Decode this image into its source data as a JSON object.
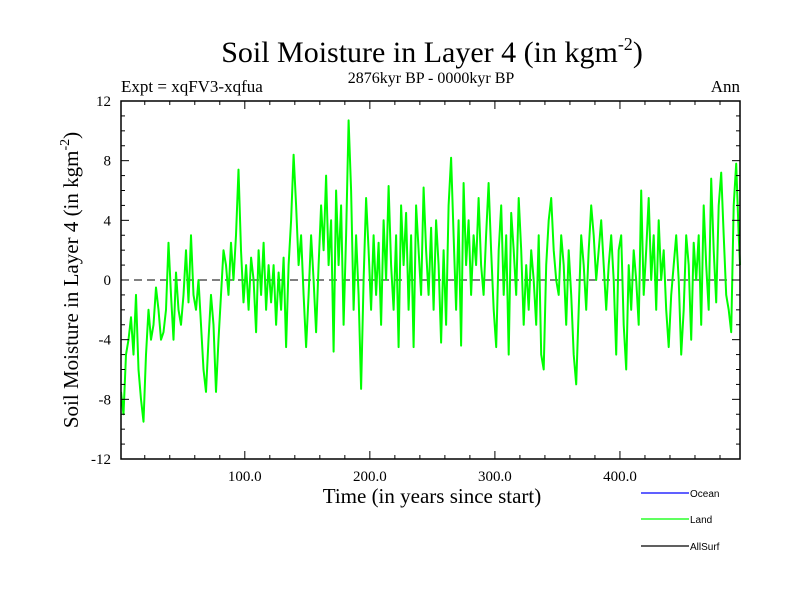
{
  "chart_data": {
    "type": "line",
    "title": "Soil Moisture in Layer 4 (in kgm",
    "title_sup": "-2",
    "title_close": ")",
    "subtitle": "2876kyr BP - 0000kyr BP",
    "left_label": "Expt = xqFV3-xqfua",
    "right_label": "Ann",
    "xlabel": "Time (in years since start)",
    "ylabel": "Soil Moisture in Layer 4 (in kgm",
    "ylabel_sup": "-2",
    "ylabel_close": ")",
    "xlim": [
      1,
      496
    ],
    "ylim": [
      -12,
      12
    ],
    "x_ticks": [
      100,
      200,
      300,
      400
    ],
    "x_tick_labels": [
      "100.0",
      "200.0",
      "300.0",
      "400.0"
    ],
    "y_ticks": [
      -12,
      -8,
      -4,
      0,
      4,
      8,
      12
    ],
    "y_tick_labels": [
      "-12",
      "-8",
      "-4",
      "0",
      "4",
      "8",
      "12"
    ],
    "zero_line": "dashed",
    "legend_position": "bottom-right",
    "series": [
      {
        "name": "Ocean",
        "color": "#0000ff",
        "visible_in_plot": false,
        "values": []
      },
      {
        "name": "Land",
        "color": "#00ff00",
        "visible_in_plot": true,
        "points": [
          [
            1,
            -7.5
          ],
          [
            3,
            -9
          ],
          [
            5,
            -5
          ],
          [
            7,
            -4
          ],
          [
            9,
            -2.5
          ],
          [
            11,
            -5
          ],
          [
            13,
            -1
          ],
          [
            15,
            -6
          ],
          [
            17,
            -8
          ],
          [
            19,
            -9.5
          ],
          [
            21,
            -5
          ],
          [
            23,
            -2
          ],
          [
            25,
            -4
          ],
          [
            27,
            -3
          ],
          [
            29,
            -0.5
          ],
          [
            31,
            -2
          ],
          [
            33,
            -4
          ],
          [
            35,
            -3.5
          ],
          [
            37,
            -2
          ],
          [
            39,
            2.5
          ],
          [
            41,
            -1
          ],
          [
            43,
            -4
          ],
          [
            45,
            0.5
          ],
          [
            47,
            -2
          ],
          [
            49,
            -3
          ],
          [
            51,
            -1
          ],
          [
            53,
            2
          ],
          [
            55,
            -1.5
          ],
          [
            57,
            3
          ],
          [
            59,
            -1
          ],
          [
            61,
            -2
          ],
          [
            63,
            0
          ],
          [
            65,
            -3
          ],
          [
            67,
            -6
          ],
          [
            69,
            -7.5
          ],
          [
            71,
            -4
          ],
          [
            73,
            -1
          ],
          [
            75,
            -3
          ],
          [
            77,
            -7.5
          ],
          [
            79,
            -4
          ],
          [
            81,
            -1
          ],
          [
            83,
            2
          ],
          [
            85,
            1
          ],
          [
            87,
            -1
          ],
          [
            89,
            2.5
          ],
          [
            91,
            0
          ],
          [
            93,
            3
          ],
          [
            95,
            7.4
          ],
          [
            97,
            2
          ],
          [
            99,
            -1.5
          ],
          [
            101,
            1
          ],
          [
            103,
            -2
          ],
          [
            105,
            1.5
          ],
          [
            107,
            0
          ],
          [
            109,
            -3.5
          ],
          [
            111,
            2
          ],
          [
            113,
            -1
          ],
          [
            115,
            2.5
          ],
          [
            117,
            -2
          ],
          [
            119,
            1
          ],
          [
            121,
            -1.5
          ],
          [
            123,
            1
          ],
          [
            125,
            -3
          ],
          [
            127,
            0.5
          ],
          [
            129,
            -2
          ],
          [
            131,
            1.5
          ],
          [
            133,
            -4.5
          ],
          [
            135,
            1
          ],
          [
            137,
            4
          ],
          [
            139,
            8.4
          ],
          [
            141,
            5
          ],
          [
            143,
            1
          ],
          [
            145,
            3
          ],
          [
            147,
            -1
          ],
          [
            149,
            -4.5
          ],
          [
            151,
            -1
          ],
          [
            153,
            3
          ],
          [
            155,
            0
          ],
          [
            157,
            -3.5
          ],
          [
            159,
            1
          ],
          [
            161,
            5
          ],
          [
            163,
            2
          ],
          [
            165,
            7
          ],
          [
            167,
            1
          ],
          [
            169,
            4
          ],
          [
            171,
            -4.8
          ],
          [
            173,
            6
          ],
          [
            175,
            1
          ],
          [
            177,
            5
          ],
          [
            179,
            -3
          ],
          [
            181,
            3
          ],
          [
            183,
            10.7
          ],
          [
            185,
            6
          ],
          [
            187,
            -2
          ],
          [
            189,
            3
          ],
          [
            191,
            -1
          ],
          [
            193,
            -7.3
          ],
          [
            195,
            0
          ],
          [
            197,
            5.5
          ],
          [
            199,
            2
          ],
          [
            201,
            -2
          ],
          [
            203,
            3
          ],
          [
            205,
            -1
          ],
          [
            207,
            2.5
          ],
          [
            209,
            -3
          ],
          [
            211,
            4
          ],
          [
            213,
            0
          ],
          [
            215,
            6.3
          ],
          [
            217,
            1
          ],
          [
            219,
            -2
          ],
          [
            221,
            3
          ],
          [
            223,
            -4.5
          ],
          [
            225,
            5
          ],
          [
            227,
            1
          ],
          [
            229,
            4.5
          ],
          [
            231,
            -2
          ],
          [
            233,
            3
          ],
          [
            235,
            -4.5
          ],
          [
            237,
            5
          ],
          [
            239,
            2
          ],
          [
            241,
            -1
          ],
          [
            243,
            6.2
          ],
          [
            245,
            2
          ],
          [
            247,
            -1
          ],
          [
            249,
            3.5
          ],
          [
            251,
            -2
          ],
          [
            253,
            4
          ],
          [
            255,
            1
          ],
          [
            257,
            -4.2
          ],
          [
            259,
            2
          ],
          [
            261,
            -3
          ],
          [
            263,
            5
          ],
          [
            265,
            8.2
          ],
          [
            267,
            3
          ],
          [
            269,
            -2
          ],
          [
            271,
            4
          ],
          [
            273,
            -4.4
          ],
          [
            275,
            6.5
          ],
          [
            277,
            1
          ],
          [
            279,
            4
          ],
          [
            281,
            -1
          ],
          [
            283,
            3
          ],
          [
            285,
            1
          ],
          [
            287,
            5.5
          ],
          [
            289,
            1
          ],
          [
            291,
            -1
          ],
          [
            293,
            3
          ],
          [
            295,
            6.5
          ],
          [
            297,
            2
          ],
          [
            299,
            -2
          ],
          [
            301,
            -4.5
          ],
          [
            303,
            2
          ],
          [
            305,
            5
          ],
          [
            307,
            -1
          ],
          [
            309,
            3
          ],
          [
            311,
            -5
          ],
          [
            313,
            4.5
          ],
          [
            315,
            2
          ],
          [
            317,
            -1
          ],
          [
            319,
            5.5
          ],
          [
            321,
            2
          ],
          [
            323,
            -3
          ],
          [
            325,
            1
          ],
          [
            327,
            -2
          ],
          [
            329,
            2
          ],
          [
            331,
            0
          ],
          [
            333,
            -3
          ],
          [
            335,
            3
          ],
          [
            337,
            -5
          ],
          [
            339,
            -6
          ],
          [
            341,
            1
          ],
          [
            343,
            4
          ],
          [
            345,
            5.5
          ],
          [
            347,
            2
          ],
          [
            349,
            0
          ],
          [
            351,
            -1
          ],
          [
            353,
            3
          ],
          [
            355,
            1
          ],
          [
            357,
            -3
          ],
          [
            359,
            2
          ],
          [
            361,
            -1
          ],
          [
            363,
            -5
          ],
          [
            365,
            -7
          ],
          [
            367,
            -2
          ],
          [
            369,
            3
          ],
          [
            371,
            1
          ],
          [
            373,
            -2
          ],
          [
            375,
            2
          ],
          [
            377,
            5
          ],
          [
            379,
            3
          ],
          [
            381,
            0
          ],
          [
            383,
            2
          ],
          [
            385,
            4
          ],
          [
            387,
            1
          ],
          [
            389,
            -2
          ],
          [
            391,
            1
          ],
          [
            393,
            3
          ],
          [
            395,
            0
          ],
          [
            397,
            -5
          ],
          [
            399,
            2
          ],
          [
            401,
            3
          ],
          [
            403,
            -3
          ],
          [
            405,
            -6
          ],
          [
            407,
            1
          ],
          [
            409,
            -2
          ],
          [
            411,
            2
          ],
          [
            413,
            0
          ],
          [
            415,
            -3
          ],
          [
            417,
            6
          ],
          [
            419,
            -1
          ],
          [
            421,
            2
          ],
          [
            423,
            5.5
          ],
          [
            425,
            0
          ],
          [
            427,
            3
          ],
          [
            429,
            -2
          ],
          [
            431,
            4
          ],
          [
            433,
            0
          ],
          [
            435,
            2
          ],
          [
            437,
            -2
          ],
          [
            439,
            -4.5
          ],
          [
            441,
            -1
          ],
          [
            443,
            1
          ],
          [
            445,
            3
          ],
          [
            447,
            0
          ],
          [
            449,
            -5
          ],
          [
            451,
            -2
          ],
          [
            453,
            3
          ],
          [
            455,
            1
          ],
          [
            457,
            -4
          ],
          [
            459,
            2.5
          ],
          [
            461,
            0
          ],
          [
            463,
            3
          ],
          [
            465,
            -3
          ],
          [
            467,
            5
          ],
          [
            469,
            1
          ],
          [
            471,
            -2
          ],
          [
            473,
            6.8
          ],
          [
            475,
            2
          ],
          [
            477,
            -1.5
          ],
          [
            479,
            5
          ],
          [
            481,
            7.2
          ],
          [
            483,
            3
          ],
          [
            485,
            -1
          ],
          [
            487,
            -2
          ],
          [
            489,
            -3.5
          ],
          [
            491,
            5
          ],
          [
            493,
            7.8
          ],
          [
            495,
            3
          ],
          [
            496,
            1
          ]
        ]
      },
      {
        "name": "AllSurf",
        "color": "#000000",
        "visible_in_plot": false,
        "values": []
      }
    ]
  }
}
